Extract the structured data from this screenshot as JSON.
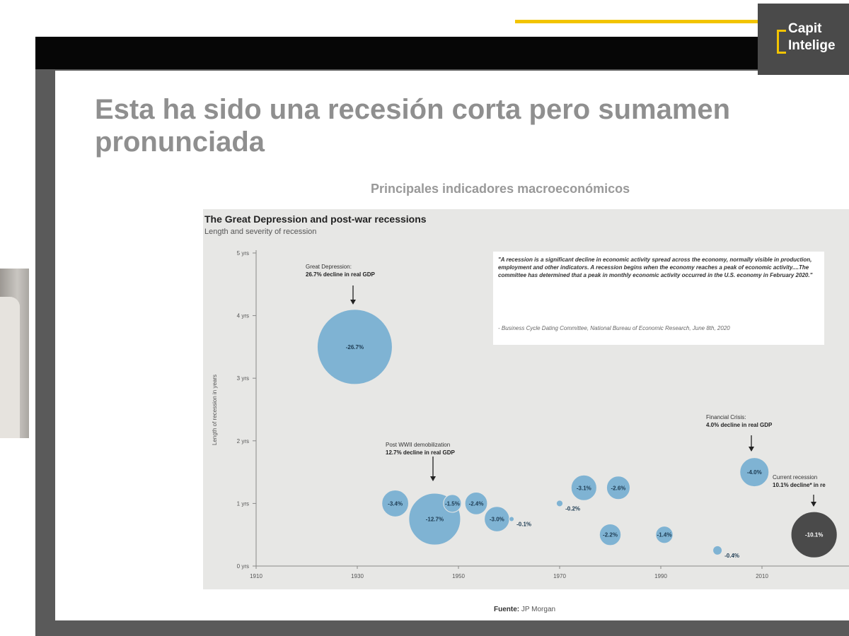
{
  "brand": {
    "line1": "Capit",
    "line2": "Intelige",
    "accent_color": "#f2c400"
  },
  "slide": {
    "title_line1": "Esta ha sido una recesión corta pero sumamen",
    "title_line2": "pronunciada",
    "subtitle": "Principales indicadores macroeconómicos",
    "source_label": "Fuente:",
    "source_value": "JP Morgan"
  },
  "quote": {
    "text": "\"A recession is a significant decline in economic activity spread across the economy, normally visible in production, employment and other indicators. A recession begins when the economy reaches a peak of economic activity....The committee has determined that a peak in monthly economic activity occurred in the U.S. economy in February 2020.\"",
    "citation": "- Business Cycle Dating Committee, National Bureau of Economic Research, June 8th, 2020"
  },
  "chart_data": {
    "type": "scatter",
    "title": "The Great Depression and post-war recessions",
    "subtitle": "Length and severity of recession",
    "ylabel": "Length of recession in years",
    "xlabel": "",
    "x_ticks": [
      "1910",
      "1930",
      "1950",
      "1970",
      "1990",
      "2010"
    ],
    "y_ticks": [
      "0 yrs",
      "1 yrs",
      "2 yrs",
      "3 yrs",
      "4 yrs",
      "5 yrs"
    ],
    "xlim": [
      1910,
      2030
    ],
    "ylim": [
      0,
      5
    ],
    "bubble_color": "#7fb3d3",
    "current_color": "#4a4a4a",
    "points": [
      {
        "x": 1929.5,
        "y": 3.5,
        "value": -26.7,
        "label": "-26.7%"
      },
      {
        "x": 1937.5,
        "y": 1.0,
        "value": -3.4,
        "label": "-3.4%"
      },
      {
        "x": 1945.3,
        "y": 0.75,
        "value": -12.7,
        "label": "-12.7%"
      },
      {
        "x": 1948.8,
        "y": 1.0,
        "value": -1.5,
        "label": "-1.5%"
      },
      {
        "x": 1953.5,
        "y": 1.0,
        "value": -2.4,
        "label": "-2.4%"
      },
      {
        "x": 1957.6,
        "y": 0.75,
        "value": -3.0,
        "label": "-3.0%"
      },
      {
        "x": 1960.5,
        "y": 0.75,
        "value": -0.1,
        "label": "-0.1%"
      },
      {
        "x": 1970,
        "y": 1.0,
        "value": -0.2,
        "label": "-0.2%"
      },
      {
        "x": 1974.8,
        "y": 1.25,
        "value": -3.1,
        "label": "-3.1%"
      },
      {
        "x": 1980,
        "y": 0.5,
        "value": -2.2,
        "label": "-2.2%"
      },
      {
        "x": 1981.6,
        "y": 1.25,
        "value": -2.6,
        "label": "-2.6%"
      },
      {
        "x": 1990.7,
        "y": 0.5,
        "value": -1.4,
        "label": "-1.4%"
      },
      {
        "x": 2001.2,
        "y": 0.25,
        "value": -0.4,
        "label": "-0.4%"
      },
      {
        "x": 2008.5,
        "y": 1.5,
        "value": -4.0,
        "label": "-4.0%"
      },
      {
        "x": 2020.3,
        "y": 0.5,
        "value": -10.1,
        "label": "-10.1%",
        "current": true
      }
    ],
    "annotations": [
      {
        "line1": "Great Depression:",
        "line2": "26.7% decline in real GDP",
        "target": 0
      },
      {
        "line1": "Post WWII demobilization",
        "line2": "12.7% decline in real GDP",
        "target": 2
      },
      {
        "line1": "Financial Crisis:",
        "line2": "4.0% decline in real GDP",
        "target": 13
      },
      {
        "line1": "Current recession",
        "line2": "10.1% decline* in re",
        "target": 14
      }
    ]
  }
}
